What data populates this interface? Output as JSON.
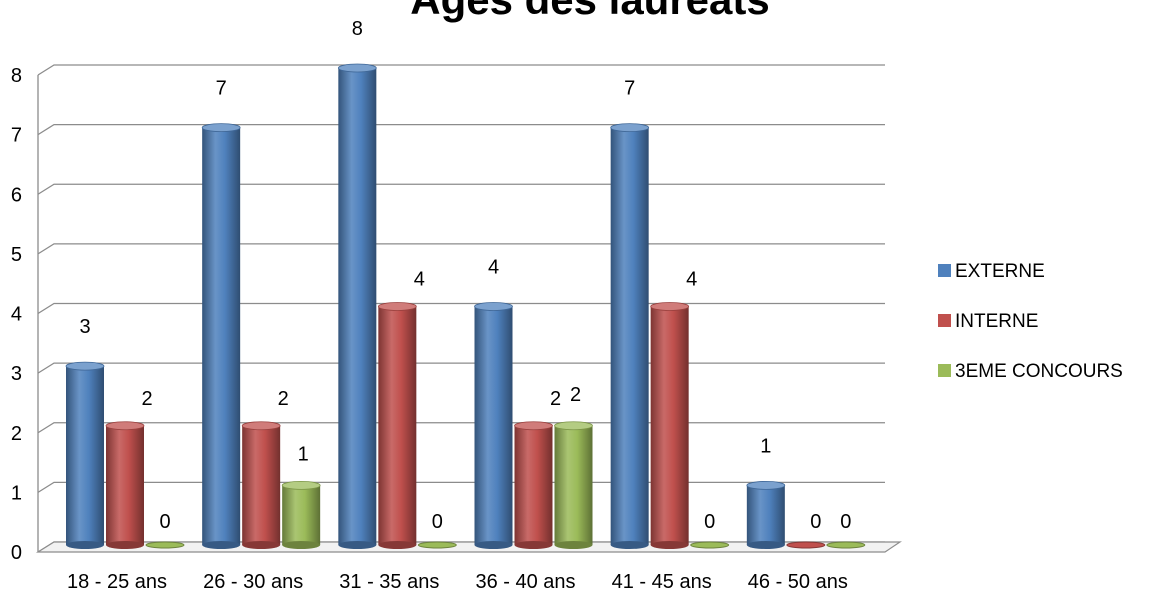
{
  "chart_data": {
    "type": "bar",
    "title": "Ages des lauréats",
    "xlabel": "",
    "ylabel": "",
    "categories": [
      "18 - 25 ans",
      "26 - 30 ans",
      "31 - 35 ans",
      "36 - 40 ans",
      "41 - 45 ans",
      "46 - 50 ans"
    ],
    "series": [
      {
        "name": "EXTERNE",
        "values": [
          3,
          7,
          8,
          4,
          7,
          1
        ],
        "color": "#4F81BD"
      },
      {
        "name": "INTERNE",
        "values": [
          2,
          2,
          4,
          2,
          4,
          0
        ],
        "color": "#C0504D"
      },
      {
        "name": "3EME CONCOURS",
        "values": [
          0,
          1,
          0,
          2,
          0,
          0
        ],
        "color": "#9BBB59"
      }
    ],
    "ylim": [
      0,
      8
    ],
    "yticks": [
      "0",
      "1",
      "2",
      "3",
      "4",
      "5",
      "6",
      "7",
      "8"
    ],
    "grid": true,
    "legend_position": "right",
    "data_labels": true,
    "bar_style": "3d-cylinder"
  }
}
